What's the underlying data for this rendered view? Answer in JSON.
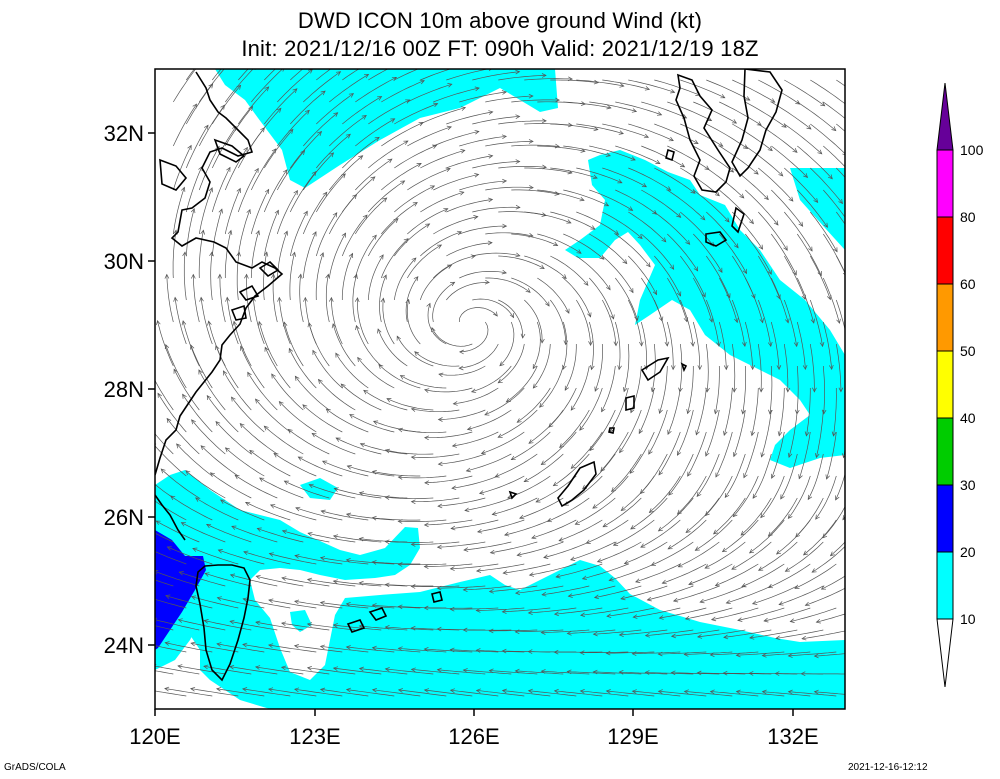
{
  "title": {
    "line1": "DWD ICON 10m above ground Wind (kt)",
    "line2": "Init: 2021/12/16 00Z  FT: 090h  Valid: 2021/12/19 18Z"
  },
  "axes": {
    "lat_labels": [
      "32N",
      "30N",
      "28N",
      "26N",
      "24N"
    ],
    "lon_labels": [
      "120E",
      "123E",
      "126E",
      "129E",
      "132E"
    ]
  },
  "colorbar": {
    "levels": [
      "10",
      "20",
      "30",
      "40",
      "50",
      "60",
      "80",
      "100"
    ],
    "colors": [
      "#00ffff",
      "#0000ff",
      "#00cc00",
      "#ffff00",
      "#ff9900",
      "#ff0000",
      "#ff00ff",
      "#660099"
    ]
  },
  "footer": {
    "left": "GrADS/COLA",
    "right": "2021-12-16-12:12"
  },
  "palette": {
    "cyan": "#00ffff",
    "blue": "#0000ff",
    "stream": "#555555",
    "coast": "#000000"
  }
}
